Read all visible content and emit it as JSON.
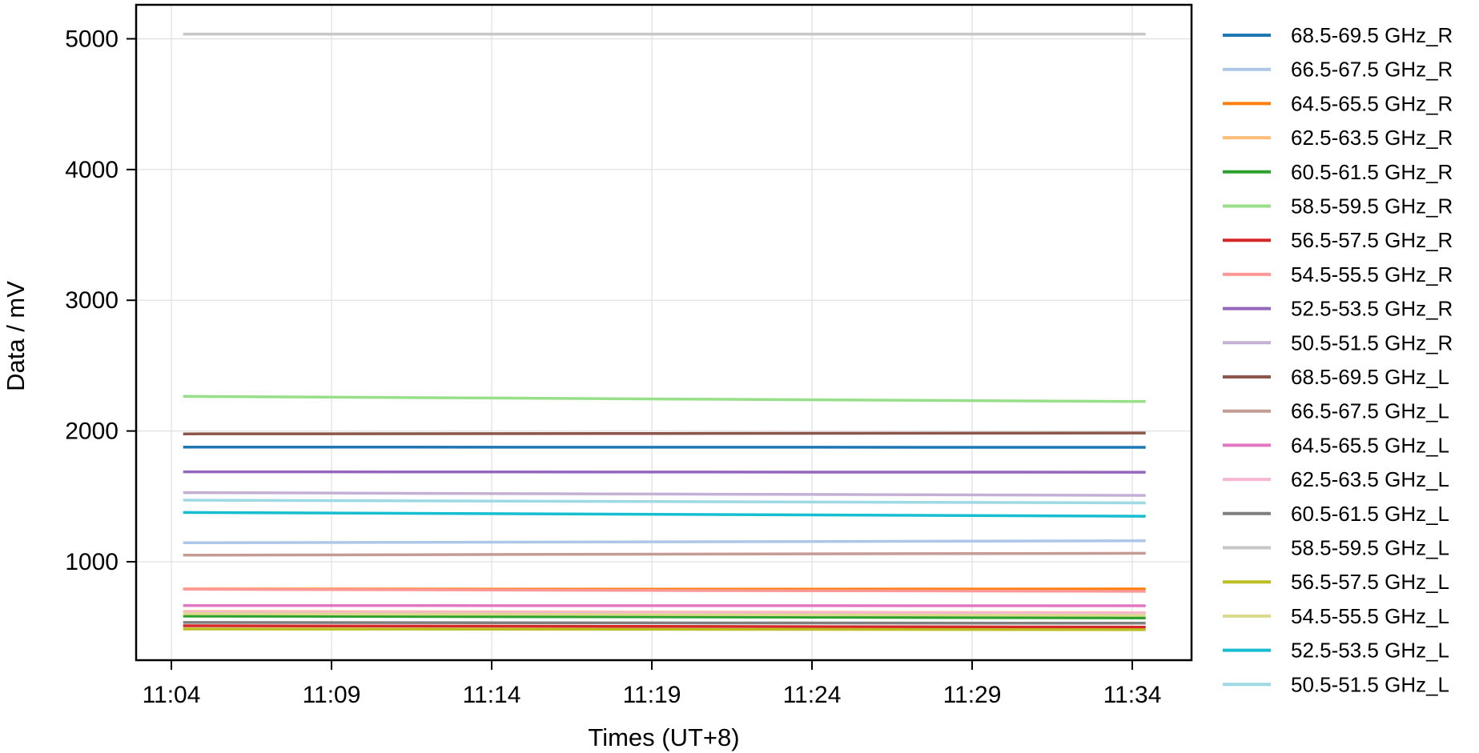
{
  "chart_data": {
    "type": "line",
    "title": "",
    "xlabel": "Times (UT+8)",
    "ylabel": "Data / mV",
    "xlim": [
      "11:02:54",
      "11:35:51"
    ],
    "ylim": [
      247,
      5260
    ],
    "xticks": [
      "11:04",
      "11:09",
      "11:14",
      "11:19",
      "11:24",
      "11:29",
      "11:34"
    ],
    "yticks": [
      1000,
      2000,
      3000,
      4000,
      5000
    ],
    "grid": true,
    "legend_placement": "outside-right",
    "x": [
      "11:04:22",
      "11:19:20",
      "11:34:25"
    ],
    "series": [
      {
        "name": "68.5-69.5 GHz_R",
        "color": "#1f77b4",
        "values": [
          1877,
          1876,
          1875
        ]
      },
      {
        "name": "66.5-67.5 GHz_R",
        "color": "#aec7e8",
        "values": [
          1145,
          1152,
          1160
        ]
      },
      {
        "name": "64.5-65.5 GHz_R",
        "color": "#ff7f0e",
        "values": [
          792,
          790,
          792
        ]
      },
      {
        "name": "62.5-63.5 GHz_R",
        "color": "#ffbb78",
        "values": [
          620,
          615,
          610
        ]
      },
      {
        "name": "60.5-61.5 GHz_R",
        "color": "#2ca02c",
        "values": [
          584,
          578,
          570
        ]
      },
      {
        "name": "58.5-59.5 GHz_R",
        "color": "#98df8a",
        "values": [
          2265,
          2245,
          2225
        ]
      },
      {
        "name": "56.5-57.5 GHz_R",
        "color": "#d62728",
        "values": [
          510,
          505,
          500
        ]
      },
      {
        "name": "54.5-55.5 GHz_R",
        "color": "#ff9896",
        "values": [
          790,
          780,
          774
        ]
      },
      {
        "name": "52.5-53.5 GHz_R",
        "color": "#9467bd",
        "values": [
          1688,
          1686,
          1685
        ]
      },
      {
        "name": "50.5-51.5 GHz_R",
        "color": "#c5b0d5",
        "values": [
          1529,
          1518,
          1507
        ]
      },
      {
        "name": "68.5-69.5 GHz_L",
        "color": "#8c564b",
        "values": [
          1978,
          1981,
          1985
        ]
      },
      {
        "name": "66.5-67.5 GHz_L",
        "color": "#c49c94",
        "values": [
          1050,
          1058,
          1065
        ]
      },
      {
        "name": "64.5-65.5 GHz_L",
        "color": "#e377c2",
        "values": [
          665,
          664,
          663
        ]
      },
      {
        "name": "62.5-63.5 GHz_L",
        "color": "#f7b6d2",
        "values": [
          615,
          612,
          608
        ]
      },
      {
        "name": "60.5-61.5 GHz_L",
        "color": "#7f7f7f",
        "values": [
          535,
          532,
          530
        ]
      },
      {
        "name": "58.5-59.5 GHz_L",
        "color": "#c7c7c7",
        "values": [
          5036,
          5036,
          5036
        ]
      },
      {
        "name": "56.5-57.5 GHz_L",
        "color": "#bcbd22",
        "values": [
          486,
          483,
          480
        ]
      },
      {
        "name": "54.5-55.5 GHz_L",
        "color": "#dbdb8d",
        "values": [
          602,
          596,
          590
        ]
      },
      {
        "name": "52.5-53.5 GHz_L",
        "color": "#17becf",
        "values": [
          1377,
          1362,
          1348
        ]
      },
      {
        "name": "50.5-51.5 GHz_L",
        "color": "#9edae5",
        "values": [
          1471,
          1460,
          1450
        ]
      }
    ]
  }
}
